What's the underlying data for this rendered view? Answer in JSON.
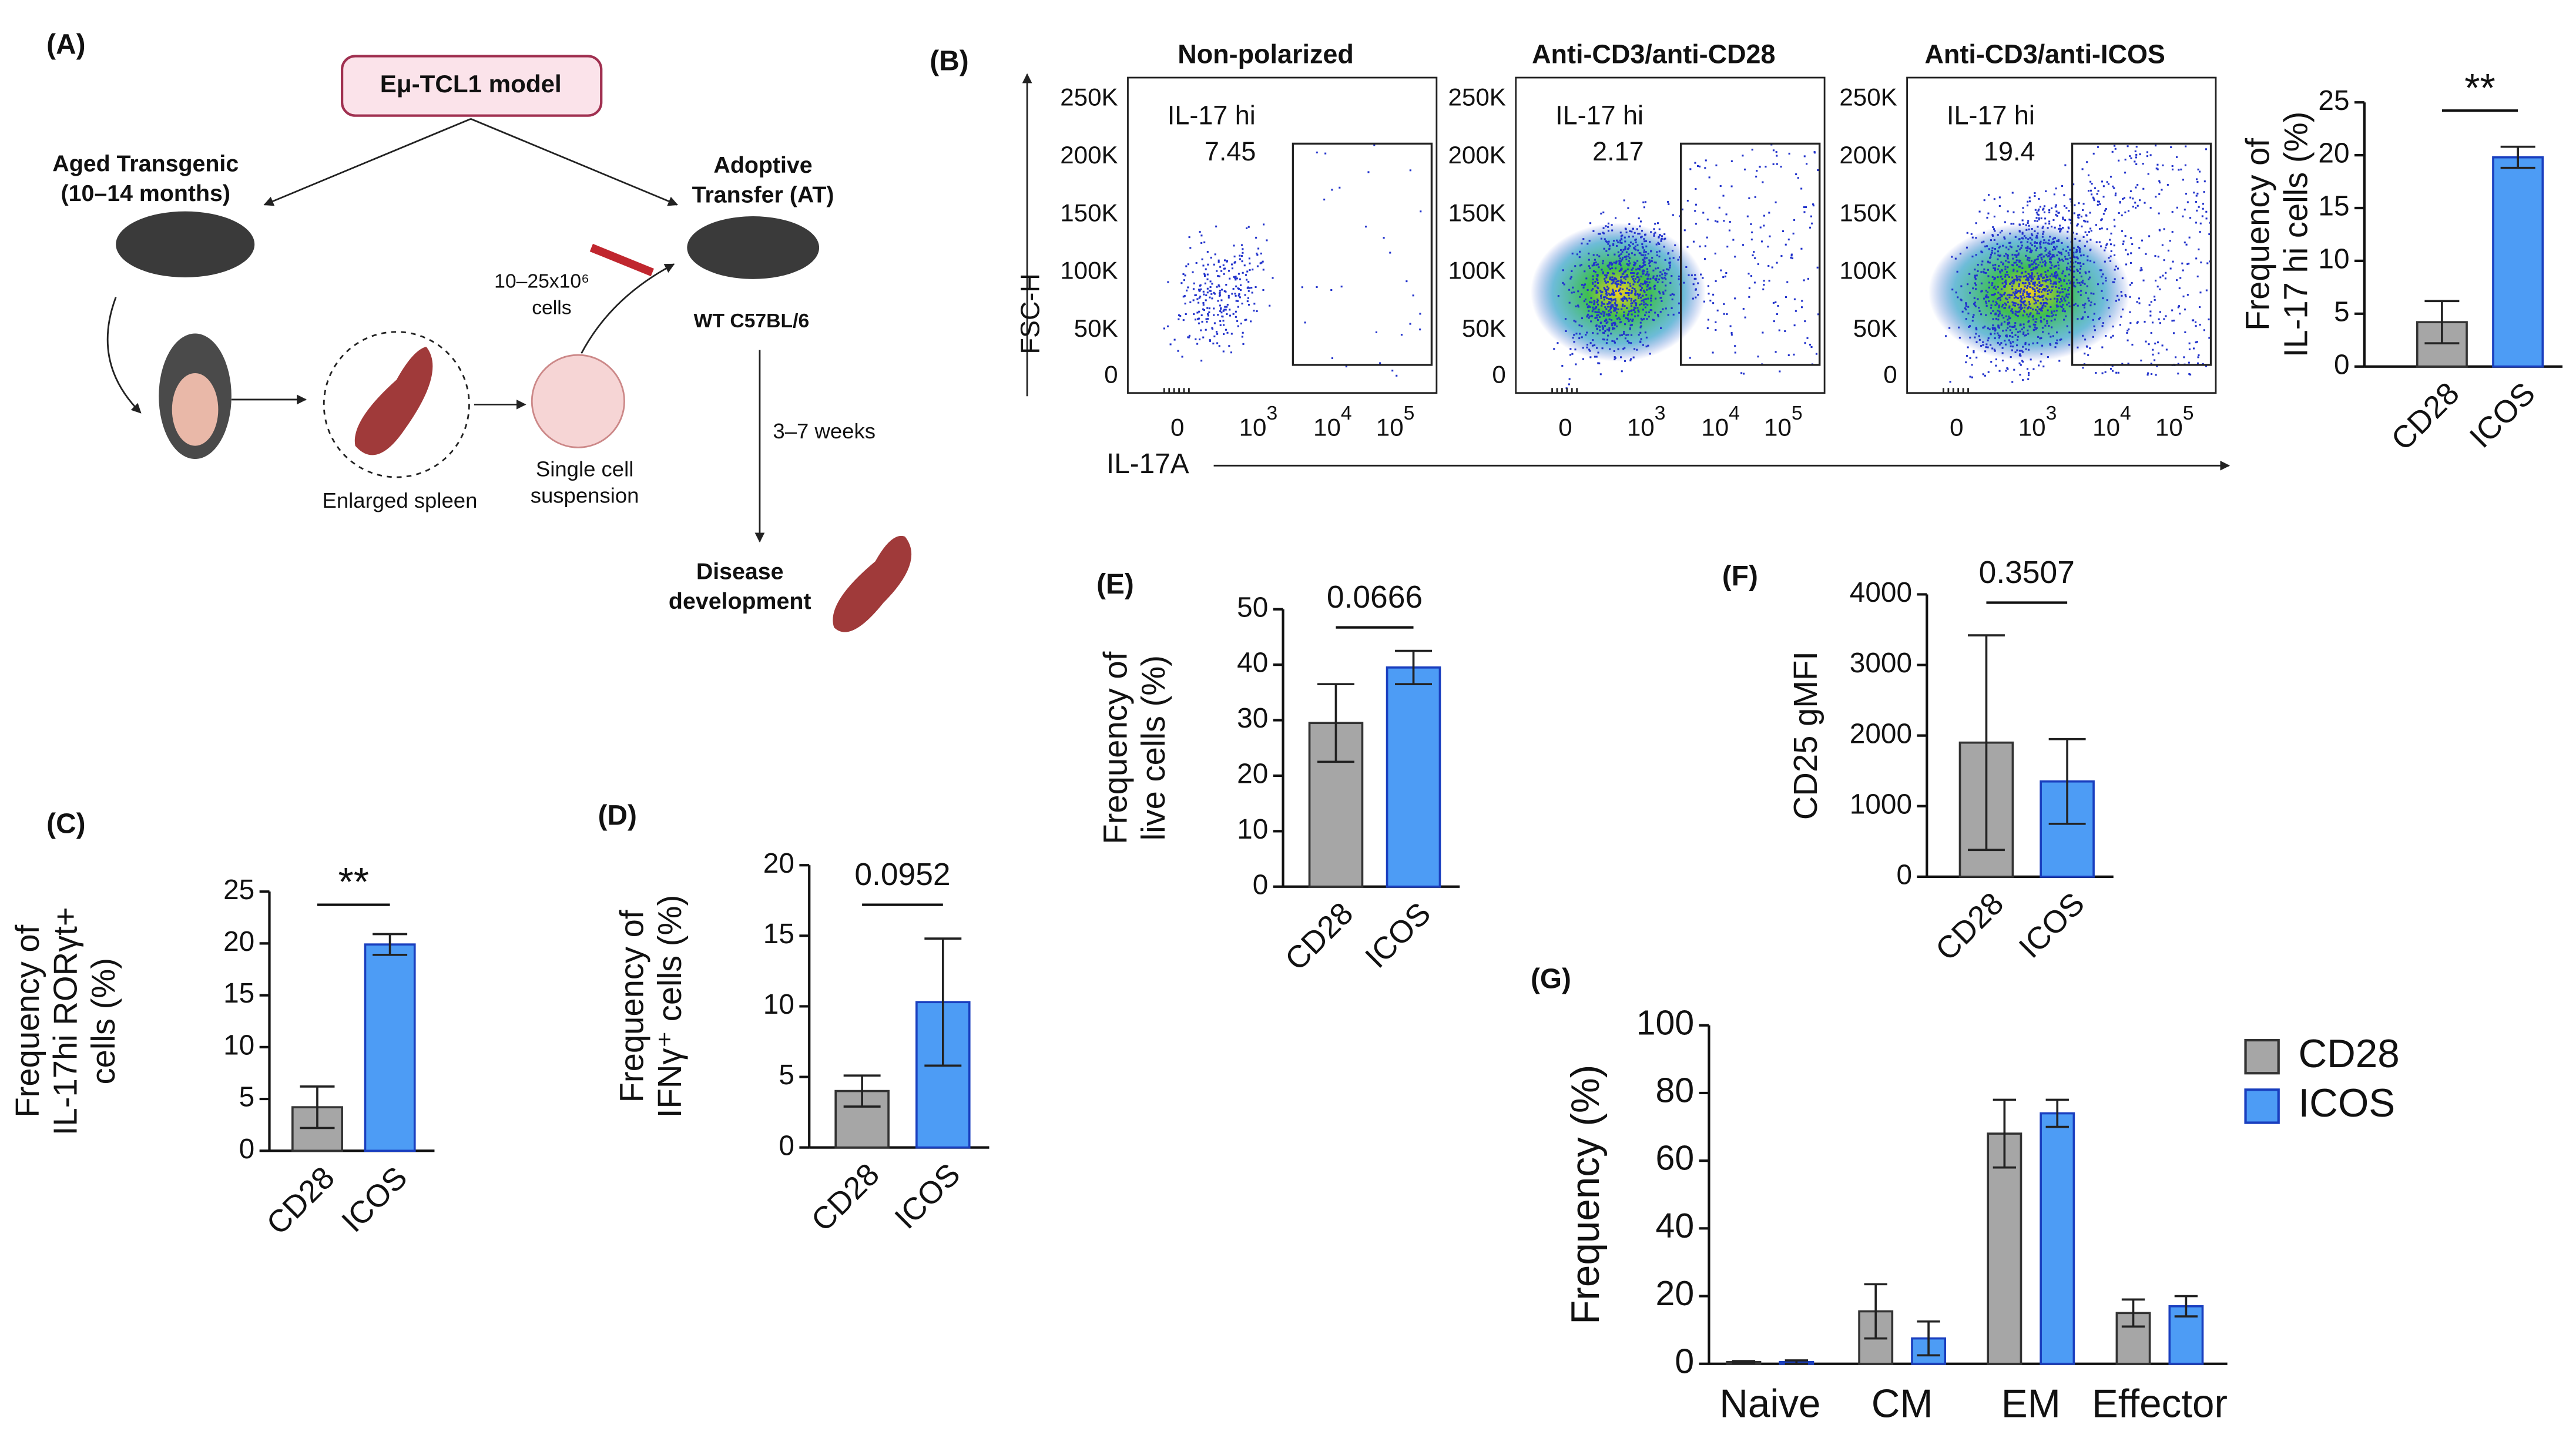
{
  "diagram": {
    "label": "(A)",
    "model": "Eμ-TCL1 model",
    "source": [
      "Aged Transgenic",
      "(10–14 months)"
    ],
    "spleen": "Enlarged spleen",
    "suspension": [
      "Single cell",
      "suspension"
    ],
    "dose": [
      "10–25x10⁶",
      "cells"
    ],
    "transfer": [
      "Adoptive",
      "Transfer (AT)"
    ],
    "recipient": "WT C57BL/6",
    "duration": "3–7 weeks",
    "outcome": [
      "Disease",
      "development"
    ]
  },
  "flow": {
    "label": "(B)",
    "y_axis": "FSC-H",
    "x_axis": "IL-17A",
    "yticks": [
      "250K",
      "200K",
      "150K",
      "100K",
      "50K",
      "0"
    ],
    "xticks": [
      "0",
      [
        "10",
        "3"
      ],
      [
        "10",
        "4"
      ],
      [
        "10",
        "5"
      ]
    ],
    "gate": "IL-17 hi",
    "panels": [
      {
        "title": "Non-polarized",
        "value": "7.45"
      },
      {
        "title": "Anti-CD3/anti-CD28",
        "value": "2.17"
      },
      {
        "title": "Anti-CD3/anti-ICOS",
        "value": "19.4"
      }
    ]
  },
  "chart_data": [
    {
      "type": "bar",
      "ylabel": [
        "Frequency of",
        "IL-17 hi cells (%)"
      ],
      "categories": [
        "CD28",
        "ICOS"
      ],
      "values": [
        4.2,
        19.8
      ],
      "errors": [
        2.0,
        1.0
      ],
      "colors": [
        "#a6a6a6",
        "#4d9cf5"
      ],
      "ylim": [
        0,
        25
      ],
      "yticks": [
        0,
        5,
        10,
        15,
        20,
        25
      ],
      "annotation": "**"
    },
    {
      "type": "bar",
      "label": "(C)",
      "ylabel": [
        "Frequency of",
        "IL-17hi RORγt+",
        "cells (%)"
      ],
      "categories": [
        "CD28",
        "ICOS"
      ],
      "values": [
        4.2,
        19.9
      ],
      "errors": [
        2.0,
        1.0
      ],
      "colors": [
        "#a6a6a6",
        "#4d9cf5"
      ],
      "ylim": [
        0,
        25
      ],
      "yticks": [
        0,
        5,
        10,
        15,
        20,
        25
      ],
      "annotation": "**"
    },
    {
      "type": "bar",
      "label": "(D)",
      "ylabel": [
        "Frequency of",
        "IFNγ⁺ cells (%)"
      ],
      "categories": [
        "CD28",
        "ICOS"
      ],
      "values": [
        4.0,
        10.3
      ],
      "errors": [
        1.1,
        4.5
      ],
      "colors": [
        "#a6a6a6",
        "#4d9cf5"
      ],
      "ylim": [
        0,
        20
      ],
      "yticks": [
        0,
        5,
        10,
        15,
        20
      ],
      "annotation": "0.0952"
    },
    {
      "type": "bar",
      "label": "(E)",
      "ylabel": [
        "Frequency of",
        "live cells (%)"
      ],
      "categories": [
        "CD28",
        "ICOS"
      ],
      "values": [
        29.5,
        39.5
      ],
      "errors": [
        7,
        3
      ],
      "colors": [
        "#a6a6a6",
        "#4d9cf5"
      ],
      "ylim": [
        0,
        50
      ],
      "yticks": [
        0,
        10,
        20,
        30,
        40,
        50
      ],
      "annotation": "0.0666"
    },
    {
      "type": "bar",
      "label": "(F)",
      "ylabel": [
        "CD25 gMFI"
      ],
      "categories": [
        "CD28",
        "ICOS"
      ],
      "values": [
        1900,
        1350
      ],
      "errors": [
        1520,
        600
      ],
      "colors": [
        "#a6a6a6",
        "#4d9cf5"
      ],
      "ylim": [
        0,
        4000
      ],
      "yticks": [
        0,
        1000,
        2000,
        3000,
        4000
      ],
      "annotation": "0.3507"
    },
    {
      "type": "bar",
      "label": "(G)",
      "ylabel": [
        "Frequency (%)"
      ],
      "categories": [
        "Naive",
        "CM",
        "EM",
        "Effector"
      ],
      "series": [
        {
          "name": "CD28",
          "color": "#a6a6a6",
          "values": [
            0.5,
            15.5,
            68,
            15
          ],
          "errors": [
            0.3,
            8,
            10,
            4
          ]
        },
        {
          "name": "ICOS",
          "color": "#4d9cf5",
          "values": [
            0.5,
            7.5,
            74,
            17
          ],
          "errors": [
            0.5,
            5,
            4,
            3
          ]
        }
      ],
      "ylim": [
        0,
        100
      ],
      "yticks": [
        0,
        20,
        40,
        60,
        80,
        100
      ]
    }
  ]
}
